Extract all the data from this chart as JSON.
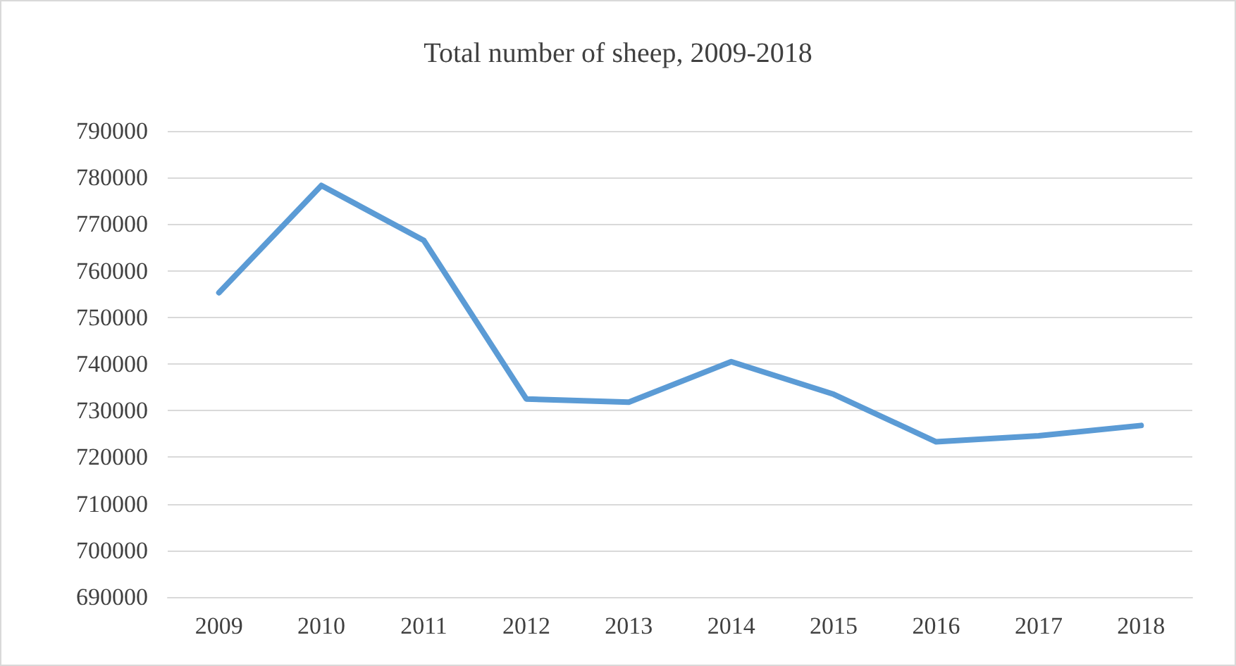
{
  "chart_data": {
    "type": "line",
    "title": "Total number of sheep, 2009-2018",
    "categories": [
      "2009",
      "2010",
      "2011",
      "2012",
      "2013",
      "2014",
      "2015",
      "2016",
      "2017",
      "2018"
    ],
    "series": [
      {
        "color": "#5b9bd5",
        "values": [
          755300,
          778300,
          766500,
          732500,
          731800,
          740500,
          733500,
          723300,
          724600,
          726800
        ]
      }
    ],
    "ylim": [
      690000,
      790000
    ],
    "yticks": [
      690000,
      700000,
      710000,
      720000,
      730000,
      740000,
      750000,
      760000,
      770000,
      780000,
      790000
    ],
    "grid": "y",
    "marker": "none",
    "line_style": "solid"
  }
}
